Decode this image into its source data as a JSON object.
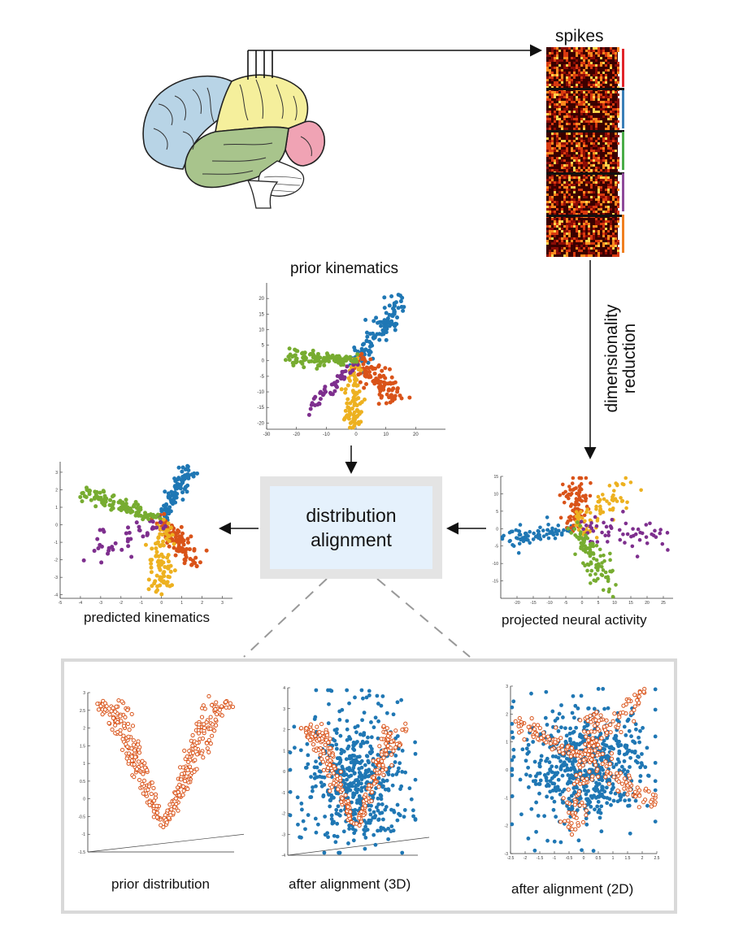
{
  "labels": {
    "spikes": "spikes",
    "dimensionality_reduction": [
      "dimensionality",
      "reduction"
    ],
    "prior_kinematics": "prior kinematics",
    "distribution_alignment": [
      "distribution",
      "alignment"
    ],
    "predicted_kinematics": "predicted kinematics",
    "projected_neural_activity": "projected neural activity",
    "prior_distribution": "prior distribution",
    "after_alignment_3d": "after alignment (3D)",
    "after_alignment_2d": "after alignment (2D)"
  },
  "colors": {
    "blue": "#1f77b4",
    "orange": "#d95319",
    "yellow": "#edb120",
    "purple": "#7e2f8e",
    "green": "#77ac30",
    "brain_blue": "#b8d4e6",
    "brain_yellow": "#f5ef9c",
    "brain_green": "#a8c48c",
    "brain_pink": "#f0a3b4",
    "spike_bar_colors": [
      "#e1242a",
      "#3a7fb8",
      "#4aac48",
      "#8e4a9a",
      "#f07f20"
    ],
    "prior_marker": "#d95319",
    "neural_marker": "#1f77b4"
  },
  "chart_data": [
    {
      "id": "prior_kinematics",
      "type": "scatter",
      "title": "prior kinematics",
      "xlim": [
        -30,
        30
      ],
      "ylim": [
        -22,
        25
      ],
      "xticks": [
        -30,
        -20,
        -10,
        0,
        10,
        20
      ],
      "yticks": [
        20,
        15,
        10,
        5,
        0,
        -5,
        -10,
        -15,
        -20
      ],
      "series": [
        {
          "color": "blue",
          "center": [
            0,
            0
          ],
          "end": [
            14,
            18
          ],
          "spread": 2.2,
          "n": 110
        },
        {
          "color": "orange",
          "center": [
            0,
            0
          ],
          "end": [
            14,
            -12
          ],
          "spread": 2.4,
          "n": 110
        },
        {
          "color": "yellow",
          "center": [
            0,
            0
          ],
          "end": [
            -1,
            -21
          ],
          "spread": 1.8,
          "n": 90
        },
        {
          "color": "purple",
          "center": [
            0,
            0
          ],
          "end": [
            -16,
            -16
          ],
          "spread": 1.2,
          "n": 50
        },
        {
          "color": "green",
          "center": [
            0,
            0
          ],
          "end": [
            -22,
            1
          ],
          "spread": 1.4,
          "n": 120
        }
      ]
    },
    {
      "id": "projected_neural_activity",
      "type": "scatter",
      "title": "projected neural activity",
      "xlim": [
        -25,
        28
      ],
      "ylim": [
        -20,
        15
      ],
      "xticks": [
        -20,
        -15,
        -10,
        -5,
        0,
        5,
        10,
        15,
        20,
        25
      ],
      "yticks": [
        15,
        10,
        5,
        0,
        -5,
        -10,
        -15
      ],
      "series": [
        {
          "color": "blue",
          "center": [
            -2,
            0
          ],
          "end": [
            -24,
            -3
          ],
          "spread": 1.5,
          "n": 80
        },
        {
          "color": "orange",
          "center": [
            -2,
            0
          ],
          "end": [
            -2,
            13
          ],
          "spread": 2.5,
          "n": 90
        },
        {
          "color": "yellow",
          "center": [
            -2,
            0
          ],
          "end": [
            14,
            12
          ],
          "spread": 2.5,
          "n": 70
        },
        {
          "color": "purple",
          "center": [
            -2,
            0
          ],
          "end": [
            25,
            -2
          ],
          "spread": 3.0,
          "n": 55
        },
        {
          "color": "green",
          "center": [
            -2,
            0
          ],
          "end": [
            8,
            -16
          ],
          "spread": 2.0,
          "n": 100
        }
      ]
    },
    {
      "id": "predicted_kinematics",
      "type": "scatter",
      "title": "predicted kinematics",
      "xlim": [
        -5,
        3.5
      ],
      "ylim": [
        -4.2,
        3.6
      ],
      "xticks": [
        -5,
        -4,
        -3,
        -2,
        -1,
        0,
        1,
        2,
        3
      ],
      "yticks": [
        3,
        2,
        1,
        0,
        -1,
        -2,
        -3,
        -4
      ],
      "series": [
        {
          "color": "blue",
          "center": [
            0,
            0.3
          ],
          "end": [
            1.4,
            3.2
          ],
          "spread": 0.25,
          "n": 90
        },
        {
          "color": "orange",
          "center": [
            0,
            0.3
          ],
          "end": [
            1.6,
            -2.0
          ],
          "spread": 0.35,
          "n": 100
        },
        {
          "color": "yellow",
          "center": [
            0,
            0.3
          ],
          "end": [
            -0.1,
            -3.6
          ],
          "spread": 0.35,
          "n": 90
        },
        {
          "color": "purple",
          "center": [
            0,
            0.3
          ],
          "end": [
            -3.6,
            -1.6
          ],
          "spread": 0.5,
          "n": 45
        },
        {
          "color": "green",
          "center": [
            0,
            0.3
          ],
          "end": [
            -3.6,
            1.8
          ],
          "spread": 0.25,
          "n": 110
        }
      ]
    },
    {
      "id": "prior_distribution",
      "type": "scatter",
      "title": "prior distribution",
      "xlim": [
        -2,
        2
      ],
      "ylim": [
        -1.5,
        3
      ],
      "yticks": [
        3,
        2.5,
        2,
        1.5,
        1,
        0.5,
        0,
        -0.5,
        -1,
        -1.5
      ],
      "shape": "v-cone",
      "series": [
        {
          "color": "prior_marker",
          "marker": "open-circle",
          "n": 360
        }
      ]
    },
    {
      "id": "after_alignment_3d",
      "type": "scatter",
      "title": "after alignment (3D)",
      "xlim": [
        -3,
        3
      ],
      "ylim": [
        -4,
        4
      ],
      "yticks": [
        4,
        3,
        2,
        1,
        0,
        -1,
        -2,
        -3,
        -4
      ],
      "shape": "v-cone-with-cloud",
      "series": [
        {
          "color": "neural_marker",
          "marker": "filled-circle",
          "n": 520
        },
        {
          "color": "prior_marker",
          "marker": "open-circle",
          "n": 260
        }
      ]
    },
    {
      "id": "after_alignment_2d",
      "type": "scatter",
      "title": "after alignment (2D)",
      "xlim": [
        -2.5,
        2.5
      ],
      "ylim": [
        -3,
        3
      ],
      "xticks": [
        -2.5,
        -2,
        -1.5,
        -1,
        -0.5,
        0,
        0.5,
        1,
        1.5,
        2,
        2.5
      ],
      "yticks": [
        3,
        2,
        1,
        0,
        -1,
        -2,
        -3
      ],
      "shape": "star-with-cloud",
      "series": [
        {
          "color": "neural_marker",
          "marker": "filled-circle",
          "n": 620
        },
        {
          "color": "prior_marker",
          "marker": "open-circle",
          "n": 320
        }
      ]
    }
  ]
}
